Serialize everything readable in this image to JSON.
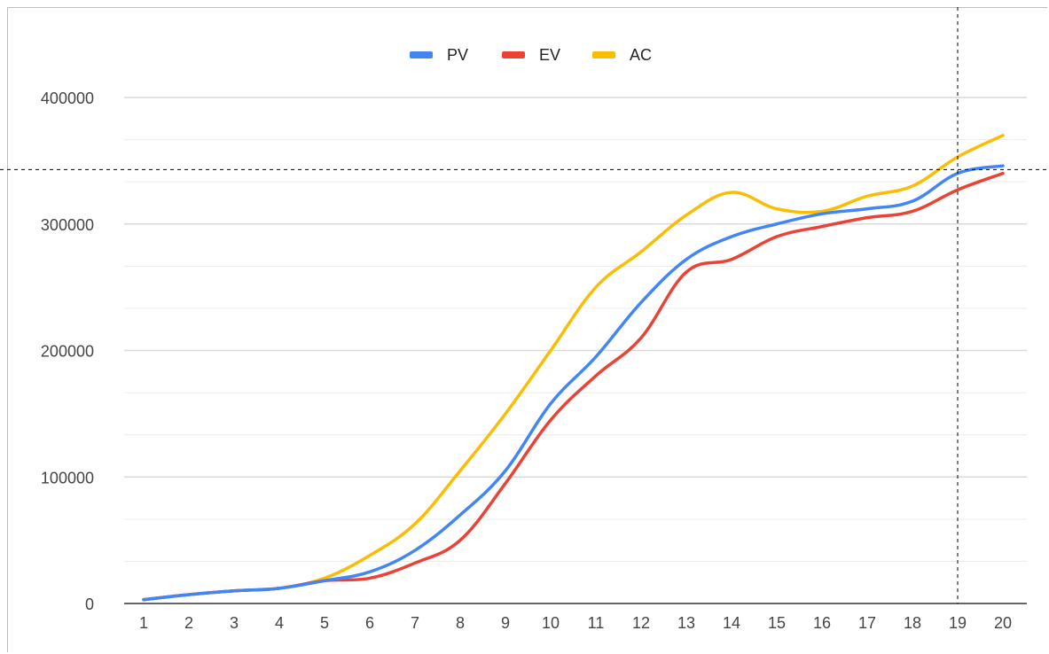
{
  "chart_data": {
    "type": "line",
    "title": "",
    "xlabel": "",
    "ylabel": "",
    "x": [
      1,
      2,
      3,
      4,
      5,
      6,
      7,
      8,
      9,
      10,
      11,
      12,
      13,
      14,
      15,
      16,
      17,
      18,
      19,
      20
    ],
    "xticks": [
      "1",
      "2",
      "3",
      "4",
      "5",
      "6",
      "7",
      "8",
      "9",
      "10",
      "11",
      "12",
      "13",
      "14",
      "15",
      "16",
      "17",
      "18",
      "19",
      "20"
    ],
    "ylim": [
      0,
      400000
    ],
    "yticks": [
      "0",
      "100000",
      "200000",
      "300000",
      "400000"
    ],
    "grid": true,
    "minor_grid": true,
    "legend_position": "top",
    "series": [
      {
        "name": "PV",
        "color": "#4285f4",
        "values": [
          3000,
          7000,
          10000,
          12000,
          18000,
          25000,
          42000,
          70000,
          105000,
          158000,
          195000,
          238000,
          272000,
          290000,
          300000,
          308000,
          312000,
          318000,
          340000,
          346000
        ]
      },
      {
        "name": "EV",
        "color": "#ea4335",
        "values": [
          3000,
          7000,
          10000,
          12000,
          18000,
          20000,
          32000,
          50000,
          95000,
          145000,
          180000,
          210000,
          262000,
          272000,
          290000,
          298000,
          305000,
          310000,
          327000,
          340000
        ]
      },
      {
        "name": "AC",
        "color": "#fbbc04",
        "values": [
          3000,
          7000,
          10000,
          12000,
          20000,
          38000,
          63000,
          105000,
          150000,
          200000,
          250000,
          278000,
          307000,
          325000,
          312000,
          310000,
          322000,
          330000,
          353000,
          370000
        ]
      }
    ],
    "crosshair": {
      "x": 19,
      "y": 343000
    }
  }
}
